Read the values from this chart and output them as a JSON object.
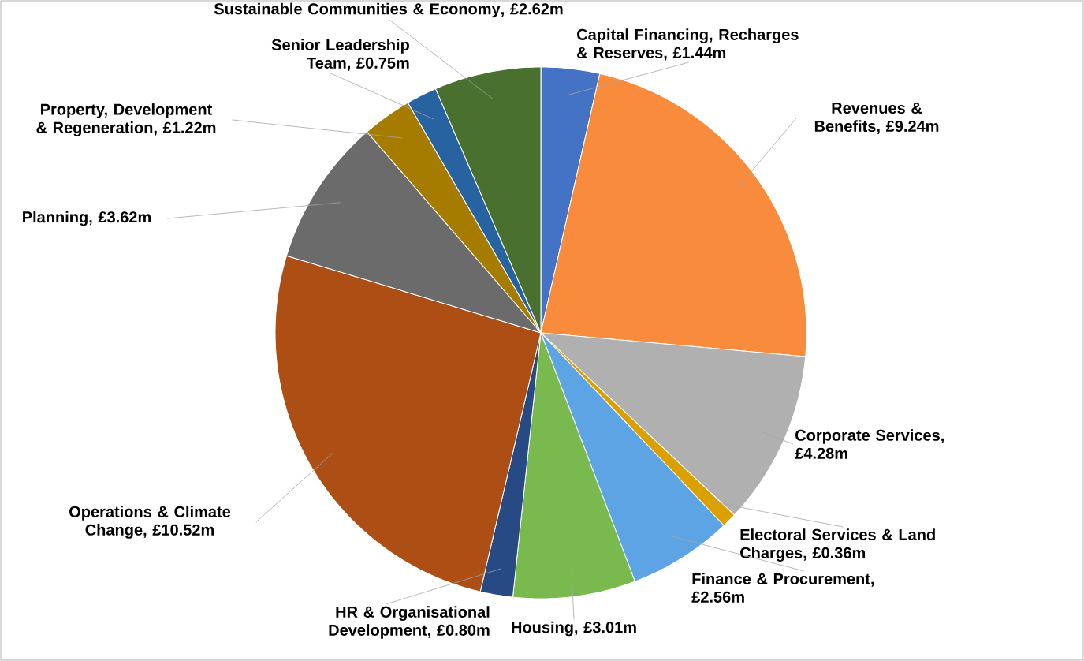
{
  "chart_data": {
    "type": "pie",
    "categories": [
      "Capital Financing, Recharges & Reserves",
      "Revenues & Benefits",
      "Corporate Services",
      "Electoral Services & Land Charges",
      "Finance & Procurement",
      "Housing",
      "HR & Organisational Development",
      "Operations & Climate Change",
      "Planning",
      "Property, Development & Regeneration",
      "Senior Leadership Team",
      "Sustainable Communities & Economy"
    ],
    "values": [
      1.44,
      9.24,
      4.28,
      0.36,
      2.56,
      3.01,
      0.8,
      10.52,
      3.62,
      1.22,
      0.75,
      2.62
    ],
    "value_labels": [
      ", £1.44m",
      ", £9.24m",
      ", £4.28m",
      ", £0.36m",
      ", £2.56m",
      ", £3.01m",
      ", £0.80m",
      ", £10.52m",
      ", £3.62m",
      ", £1.22m",
      ", £0.75m",
      ", £2.62m"
    ],
    "colors": [
      "#4472c4",
      "#f98b3c",
      "#b0b0b0",
      "#d9a000",
      "#5ca4e4",
      "#79b94e",
      "#284a84",
      "#ad4e15",
      "#6b6b6b",
      "#a57c00",
      "#2763a0",
      "#4a7030"
    ]
  }
}
